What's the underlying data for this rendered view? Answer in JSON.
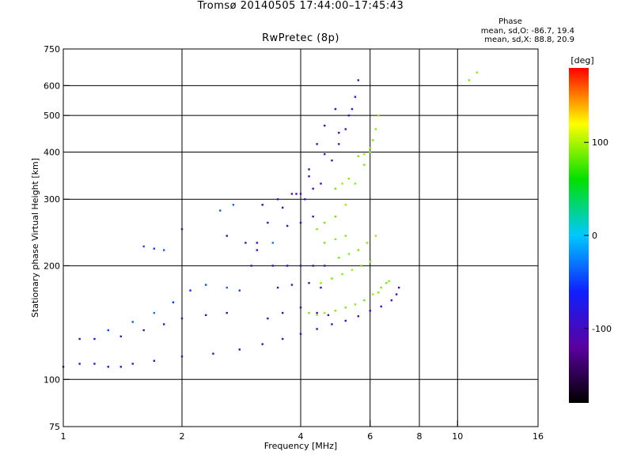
{
  "header": {
    "title_line1": "Tromsø 20140505 17:44:00–17:45:43",
    "title_line2": "RwPretec (8p)"
  },
  "phase_info": {
    "title": "Phase",
    "o_line": "mean, sd,O: -86.7, 19.4",
    "x_line": "mean, sd,X:  88.8, 20.9"
  },
  "colorbar": {
    "label": "[deg]",
    "ticks": [
      "100",
      "0",
      "-100"
    ],
    "tick_values": [
      100,
      0,
      -100
    ],
    "range": [
      -180,
      180
    ],
    "colormap": [
      "#000000",
      "#5a009f",
      "#1020ff",
      "#00c8ff",
      "#00e000",
      "#ffff00",
      "#ff0000"
    ]
  },
  "chart_data": {
    "type": "scatter",
    "xlabel": "Frequency [MHz]",
    "ylabel": "Stationary phase Virtual Height [km]",
    "xscale": "log",
    "yscale": "log",
    "xlim": [
      1,
      16
    ],
    "ylim": [
      75,
      750
    ],
    "xticks": [
      1,
      2,
      4,
      6,
      8,
      10,
      16
    ],
    "xtick_labels": [
      "1",
      "2",
      "4",
      "6",
      "8",
      "10",
      "16"
    ],
    "yticks": [
      75,
      100,
      200,
      300,
      400,
      500,
      600,
      750
    ],
    "ytick_labels": [
      "75",
      "100",
      "200",
      "300",
      "400",
      "500",
      "600",
      "750"
    ],
    "grid": true,
    "series": [
      {
        "points": [
          [
            1.0,
            108
          ],
          [
            1.1,
            110
          ],
          [
            1.2,
            110
          ],
          [
            1.3,
            108
          ],
          [
            1.4,
            108
          ],
          [
            1.5,
            110
          ],
          [
            1.7,
            112
          ],
          [
            2.0,
            115
          ],
          [
            2.4,
            117
          ],
          [
            2.8,
            120
          ],
          [
            3.2,
            124
          ],
          [
            3.6,
            128
          ],
          [
            4.0,
            132
          ],
          [
            4.4,
            136
          ],
          [
            4.8,
            140
          ],
          [
            5.2,
            143
          ],
          [
            5.6,
            147
          ],
          [
            6.0,
            152
          ],
          [
            6.4,
            156
          ],
          [
            6.8,
            162
          ],
          [
            7.0,
            168
          ],
          [
            7.1,
            175
          ],
          [
            1.1,
            128
          ],
          [
            1.2,
            128
          ],
          [
            1.4,
            130
          ],
          [
            1.6,
            135
          ],
          [
            1.8,
            140
          ],
          [
            2.0,
            145
          ],
          [
            2.3,
            148
          ],
          [
            2.6,
            150
          ],
          [
            1.3,
            135
          ],
          [
            1.5,
            142
          ],
          [
            1.7,
            150
          ],
          [
            1.9,
            160
          ],
          [
            2.1,
            172
          ],
          [
            2.3,
            178
          ],
          [
            2.6,
            175
          ],
          [
            2.8,
            172
          ],
          [
            3.0,
            200
          ],
          [
            3.1,
            230
          ],
          [
            3.3,
            260
          ],
          [
            3.6,
            285
          ],
          [
            3.9,
            310
          ],
          [
            4.2,
            345
          ],
          [
            4.6,
            395
          ],
          [
            5.0,
            450
          ],
          [
            5.3,
            500
          ],
          [
            5.5,
            560
          ],
          [
            5.6,
            620
          ],
          [
            4.8,
            380
          ],
          [
            5.0,
            420
          ],
          [
            5.2,
            460
          ],
          [
            5.4,
            520
          ],
          [
            3.2,
            290
          ],
          [
            3.5,
            300
          ],
          [
            3.8,
            310
          ],
          [
            4.1,
            300
          ],
          [
            3.4,
            200
          ],
          [
            3.7,
            200
          ],
          [
            4.0,
            200
          ],
          [
            4.3,
            200
          ],
          [
            4.6,
            200
          ],
          [
            3.5,
            175
          ],
          [
            3.8,
            178
          ],
          [
            4.2,
            180
          ],
          [
            4.5,
            175
          ],
          [
            3.3,
            145
          ],
          [
            3.6,
            150
          ],
          [
            4.0,
            155
          ],
          [
            4.4,
            150
          ],
          [
            4.7,
            148
          ],
          [
            2.6,
            240
          ],
          [
            2.9,
            230
          ],
          [
            3.1,
            220
          ],
          [
            3.4,
            230
          ],
          [
            2.5,
            280
          ],
          [
            2.7,
            290
          ],
          [
            1.6,
            225
          ],
          [
            1.7,
            222
          ],
          [
            1.8,
            220
          ],
          [
            2.0,
            250
          ],
          [
            4.4,
            420
          ],
          [
            4.6,
            470
          ],
          [
            4.9,
            520
          ],
          [
            4.2,
            360
          ],
          [
            4.5,
            330
          ],
          [
            4.3,
            270
          ],
          [
            4.0,
            260
          ],
          [
            3.7,
            255
          ],
          [
            4.0,
            310
          ],
          [
            4.3,
            320
          ]
        ],
        "values": [
          -95,
          -100,
          -98,
          -102,
          -97,
          -95,
          -100,
          -98,
          -105,
          -100,
          -97,
          -95,
          -100,
          -98,
          -102,
          -97,
          -100,
          -95,
          -98,
          -100,
          -97,
          -95,
          -100,
          -98,
          -95,
          -100,
          -98,
          -102,
          -97,
          -95,
          -50,
          -40,
          -30,
          -55,
          -60,
          -45,
          -35,
          -50,
          -90,
          -95,
          -100,
          -98,
          -105,
          -100,
          -95,
          -102,
          -98,
          -100,
          -97,
          -95,
          -100,
          -98,
          -102,
          -97,
          -98,
          -100,
          -95,
          -100,
          -102,
          -98,
          -100,
          -97,
          -95,
          -100,
          -98,
          -102,
          -97,
          -95,
          -100,
          -98,
          -102,
          -97,
          -95,
          -100,
          -30,
          -40,
          -35,
          -45,
          -50,
          -40,
          -100,
          -95,
          -100,
          -98,
          -102,
          -95,
          -100,
          -97,
          -98,
          -100,
          -102
        ]
      },
      {
        "points": [
          [
            4.6,
            150
          ],
          [
            4.9,
            152
          ],
          [
            5.2,
            155
          ],
          [
            5.5,
            158
          ],
          [
            5.8,
            162
          ],
          [
            6.1,
            168
          ],
          [
            6.4,
            175
          ],
          [
            6.7,
            182
          ],
          [
            4.5,
            180
          ],
          [
            4.8,
            185
          ],
          [
            5.1,
            190
          ],
          [
            5.4,
            195
          ],
          [
            5.7,
            200
          ],
          [
            6.0,
            205
          ],
          [
            4.4,
            250
          ],
          [
            4.6,
            260
          ],
          [
            4.9,
            270
          ],
          [
            5.2,
            290
          ],
          [
            5.5,
            330
          ],
          [
            5.8,
            370
          ],
          [
            6.0,
            400
          ],
          [
            6.1,
            430
          ],
          [
            6.2,
            460
          ],
          [
            6.3,
            500
          ],
          [
            5.6,
            390
          ],
          [
            5.8,
            395
          ],
          [
            6.0,
            410
          ],
          [
            4.9,
            320
          ],
          [
            5.1,
            330
          ],
          [
            5.3,
            340
          ],
          [
            5.0,
            210
          ],
          [
            5.3,
            215
          ],
          [
            5.6,
            220
          ],
          [
            5.9,
            230
          ],
          [
            6.2,
            240
          ],
          [
            4.6,
            230
          ],
          [
            4.9,
            235
          ],
          [
            5.2,
            240
          ],
          [
            4.2,
            150
          ],
          [
            4.4,
            148
          ],
          [
            10.7,
            620
          ],
          [
            11.2,
            650
          ],
          [
            6.3,
            170
          ],
          [
            6.6,
            180
          ]
        ],
        "values": [
          95,
          90,
          88,
          92,
          85,
          95,
          90,
          88,
          92,
          85,
          90,
          95,
          88,
          92,
          90,
          88,
          85,
          95,
          90,
          88,
          92,
          85,
          90,
          95,
          88,
          92,
          90,
          85,
          95,
          90,
          88,
          92,
          85,
          90,
          95,
          88,
          92,
          90,
          85,
          95,
          88,
          92,
          90,
          85
        ]
      }
    ]
  }
}
